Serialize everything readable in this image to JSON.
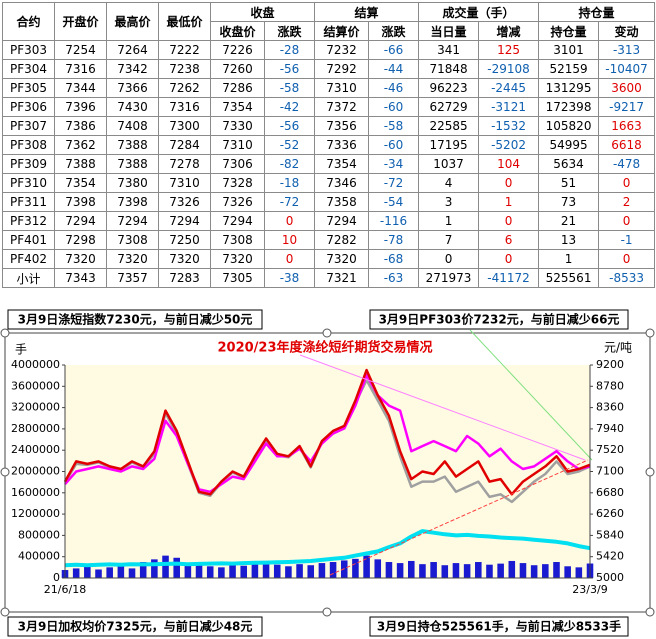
{
  "table": {
    "header_top": [
      "合约",
      "开盘价",
      "最高价",
      "最低价",
      "收盘",
      "结算",
      "成交量（手）",
      "持仓量"
    ],
    "header_sub": [
      "收盘价",
      "涨跌",
      "结算价",
      "涨跌",
      "当日量",
      "增减",
      "持仓量",
      "变动"
    ],
    "rows": [
      [
        "PF303",
        "7254",
        "7264",
        "7222",
        "7226",
        "-28",
        "7232",
        "-66",
        "341",
        "125",
        "3101",
        "-313"
      ],
      [
        "PF304",
        "7316",
        "7342",
        "7238",
        "7260",
        "-56",
        "7292",
        "-44",
        "71848",
        "-29108",
        "52159",
        "-10407"
      ],
      [
        "PF305",
        "7344",
        "7366",
        "7262",
        "7286",
        "-58",
        "7310",
        "-46",
        "96223",
        "-2445",
        "131295",
        "3600"
      ],
      [
        "PF306",
        "7396",
        "7430",
        "7316",
        "7354",
        "-42",
        "7372",
        "-60",
        "62729",
        "-3121",
        "172398",
        "-9217"
      ],
      [
        "PF307",
        "7386",
        "7408",
        "7300",
        "7330",
        "-56",
        "7356",
        "-58",
        "22585",
        "-1532",
        "105820",
        "1663"
      ],
      [
        "PF308",
        "7362",
        "7388",
        "7284",
        "7310",
        "-52",
        "7336",
        "-60",
        "17195",
        "-5202",
        "54995",
        "6618"
      ],
      [
        "PF309",
        "7388",
        "7388",
        "7278",
        "7306",
        "-82",
        "7354",
        "-34",
        "1037",
        "104",
        "5634",
        "-478"
      ],
      [
        "PF310",
        "7354",
        "7380",
        "7310",
        "7328",
        "-18",
        "7346",
        "-72",
        "4",
        "0",
        "51",
        "0"
      ],
      [
        "PF311",
        "7398",
        "7398",
        "7326",
        "7326",
        "-72",
        "7358",
        "-54",
        "3",
        "1",
        "73",
        "2"
      ],
      [
        "PF312",
        "7294",
        "7294",
        "7294",
        "7294",
        "0",
        "7294",
        "-116",
        "1",
        "0",
        "21",
        "0"
      ],
      [
        "PF401",
        "7298",
        "7308",
        "7250",
        "7308",
        "10",
        "7282",
        "-78",
        "7",
        "6",
        "13",
        "-1"
      ],
      [
        "PF402",
        "7320",
        "7320",
        "7320",
        "7320",
        "0",
        "7320",
        "-68",
        "0",
        "0",
        "1",
        "0"
      ],
      [
        "小计",
        "7343",
        "7357",
        "7283",
        "7305",
        "-38",
        "7321",
        "-63",
        "271973",
        "-41172",
        "525561",
        "-8533"
      ]
    ]
  },
  "annotations": [
    "3月9日涤短指数7230元，与前日减少50元",
    "3月9日PF303价7232元，与前日减少66元",
    "3月9日加权均价7325元，与前日减少48元",
    "3月9日持仓525561手，与前日减少8533手"
  ],
  "chart_data": {
    "type": "combo",
    "title": "2020/23年度涤纶短纤期货交易情况",
    "y_label": "手",
    "y2_label": "元/吨",
    "categories": [
      "21/6/18",
      null,
      null,
      null,
      null,
      null,
      null,
      null,
      null,
      null,
      null,
      null,
      null,
      null,
      null,
      null,
      null,
      null,
      null,
      null,
      null,
      null,
      null,
      null,
      null,
      null,
      null,
      null,
      null,
      null,
      null,
      null,
      null,
      null,
      null,
      null,
      null,
      null,
      null,
      null,
      null,
      null,
      null,
      null,
      null,
      null,
      null,
      "23/3/9"
    ],
    "ylim": [
      0,
      4000000
    ],
    "yticks": [
      0,
      400000,
      800000,
      1200000,
      1600000,
      2000000,
      2400000,
      2800000,
      3200000,
      3600000,
      4000000
    ],
    "y2lim": [
      5000,
      9200
    ],
    "y2ticks": [
      5000,
      5420,
      5840,
      6260,
      6680,
      7100,
      7520,
      7940,
      8360,
      8780,
      9200
    ],
    "grid": false,
    "series": [
      {
        "type": "bar",
        "axis": "y",
        "color": "#1a1ad0",
        "values": [
          150000,
          180000,
          220000,
          160000,
          200000,
          250000,
          180000,
          300000,
          350000,
          420000,
          380000,
          260000,
          300000,
          220000,
          200000,
          260000,
          230000,
          280000,
          320000,
          250000,
          220000,
          260000,
          240000,
          280000,
          300000,
          330000,
          360000,
          420000,
          350000,
          300000,
          280000,
          320000,
          260000,
          300000,
          240000,
          280000,
          260000,
          300000,
          250000,
          270000,
          320000,
          280000,
          240000,
          260000,
          300000,
          220000,
          200000,
          271973
        ]
      },
      {
        "type": "line",
        "axis": "y",
        "color": "#00e0f0",
        "values": [
          240000,
          250000,
          240000,
          250000,
          255000,
          250000,
          260000,
          255000,
          260000,
          265000,
          270000,
          260000,
          265000,
          270000,
          275000,
          270000,
          280000,
          285000,
          290000,
          295000,
          300000,
          310000,
          320000,
          340000,
          360000,
          380000,
          420000,
          460000,
          500000,
          580000,
          650000,
          780000,
          880000,
          850000,
          820000,
          800000,
          810000,
          790000,
          780000,
          760000,
          750000,
          740000,
          720000,
          700000,
          680000,
          650000,
          600000,
          560000
        ]
      },
      {
        "type": "line",
        "axis": "y2",
        "color": "#a0a0a0",
        "values": [
          6880,
          7250,
          7230,
          7280,
          7180,
          7120,
          7280,
          7180,
          7450,
          8250,
          7850,
          7250,
          6680,
          6620,
          6880,
          7080,
          6980,
          7380,
          7720,
          7420,
          7380,
          7580,
          7180,
          7680,
          7850,
          7950,
          8450,
          8900,
          8500,
          8100,
          7400,
          6800,
          6900,
          6900,
          7000,
          6700,
          6800,
          6900,
          6600,
          6650,
          6500,
          6700,
          6900,
          7050,
          7300,
          7050,
          7100,
          7200
        ]
      },
      {
        "type": "line",
        "axis": "y2",
        "color": "#ff00ff",
        "values": [
          6850,
          7100,
          7150,
          7200,
          7150,
          7100,
          7200,
          7150,
          7350,
          8100,
          7800,
          7250,
          6750,
          6700,
          6850,
          7000,
          6950,
          7300,
          7650,
          7400,
          7400,
          7550,
          7300,
          7650,
          7850,
          7950,
          8400,
          9000,
          8600,
          8400,
          8300,
          7500,
          7600,
          7700,
          7600,
          7500,
          7800,
          7650,
          7400,
          7550,
          7300,
          7150,
          7200,
          7350,
          7500,
          7300,
          7150,
          7200
        ]
      },
      {
        "type": "line",
        "axis": "y2",
        "color": "#e00000",
        "values": [
          6900,
          7300,
          7250,
          7300,
          7200,
          7150,
          7300,
          7200,
          7500,
          8300,
          7900,
          7300,
          6700,
          6650,
          6900,
          7100,
          7000,
          7400,
          7750,
          7450,
          7400,
          7600,
          7200,
          7700,
          7900,
          8000,
          8500,
          9100,
          8600,
          8200,
          7500,
          6950,
          7100,
          7050,
          7300,
          7000,
          7150,
          7300,
          6900,
          6950,
          6650,
          6900,
          7050,
          7200,
          7400,
          7100,
          7150,
          7232
        ]
      }
    ]
  }
}
